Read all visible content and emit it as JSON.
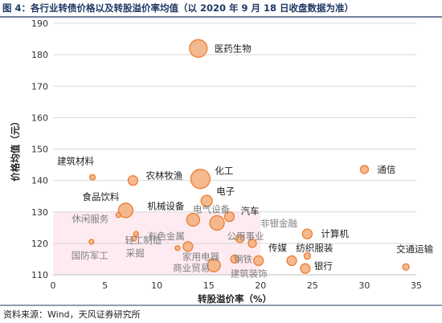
{
  "title": "图 4：各行业转债价格以及转股溢价率均值（以 2020 年 9 月 18 日收盘数据为准）",
  "source": "资料来源：Wind，天风证券研究所",
  "chart_data": {
    "type": "scatter",
    "title": "图 4：各行业转债价格以及转股溢价率均值（以 2020 年 9 月 18 日收盘数据为准）",
    "xlabel": "转股溢价率（%）",
    "ylabel": "价格均值（元）",
    "xlim": [
      0,
      35
    ],
    "ylim": [
      110,
      190
    ],
    "xticks": [
      "0",
      "5",
      "10",
      "15",
      "20",
      "25",
      "30",
      "35"
    ],
    "yticks": [
      "110",
      "120",
      "130",
      "140",
      "150",
      "160",
      "170",
      "180",
      "190"
    ],
    "grid": "horizontal",
    "colors": {
      "point_fill": "#f4b183",
      "point_stroke": "#ed7d31",
      "highlight_band": "#fce4ec",
      "title": "#1f3864"
    },
    "points": [
      {
        "name": "医药生物",
        "x": 14.0,
        "y": 182.0,
        "size": 11,
        "label_dx": 20,
        "label_dy": 4
      },
      {
        "name": "通信",
        "x": 30.0,
        "y": 143.5,
        "size": 5,
        "label_dx": 16,
        "label_dy": 4
      },
      {
        "name": "建筑材料",
        "x": 3.8,
        "y": 141.0,
        "size": 3.5,
        "label_dx": -44,
        "label_dy": -16
      },
      {
        "name": "农林牧渔",
        "x": 7.7,
        "y": 140.0,
        "size": 6,
        "label_dx": 16,
        "label_dy": -2
      },
      {
        "name": "化工",
        "x": 14.2,
        "y": 140.5,
        "size": 12,
        "label_dx": 18,
        "label_dy": -6
      },
      {
        "name": "食品饮料",
        "x": 7.0,
        "y": 130.5,
        "size": 9,
        "label_dx": -54,
        "label_dy": -13
      },
      {
        "name": "机械设备",
        "x": 13.5,
        "y": 127.5,
        "size": 8,
        "label_dx": -57,
        "label_dy": -13
      },
      {
        "name": "电子",
        "x": 14.8,
        "y": 133.5,
        "size": 7,
        "label_dx": 12,
        "label_dy": -8
      },
      {
        "name": "电气设备",
        "x": 15.8,
        "y": 126.5,
        "size": 9,
        "label_dx": -30,
        "label_dy": -13
      },
      {
        "name": "汽车",
        "x": 17.0,
        "y": 128.5,
        "size": 6,
        "label_dx": 14,
        "label_dy": -3
      },
      {
        "name": "休闲服务",
        "x": 6.3,
        "y": 129.0,
        "size": 3,
        "label_dx": -58,
        "label_dy": 9
      },
      {
        "name": "轻工制造",
        "x": 8.0,
        "y": 123.0,
        "size": 3,
        "label_dx": -14,
        "label_dy": 12
      },
      {
        "name": "有色金属",
        "x": 13.0,
        "y": 119.0,
        "size": 6,
        "label_dx": -50,
        "label_dy": -9
      },
      {
        "name": "国防军工",
        "x": 3.7,
        "y": 120.5,
        "size": 3,
        "label_dx": -25,
        "label_dy": 21
      },
      {
        "name": "采掘",
        "x": 7.8,
        "y": 121.5,
        "size": 3,
        "label_dx": -10,
        "label_dy": 22
      },
      {
        "name": "家用电器",
        "x": 12.0,
        "y": 118.5,
        "size": 3,
        "label_dx": 6,
        "label_dy": 15
      },
      {
        "name": "公用事业",
        "x": 18.0,
        "y": 121.5,
        "size": 5,
        "label_dx": -16,
        "label_dy": 1
      },
      {
        "name": "非银金融",
        "x": 19.2,
        "y": 120.0,
        "size": 5,
        "label_dx": 10,
        "label_dy": -21
      },
      {
        "name": "计算机",
        "x": 24.5,
        "y": 123.0,
        "size": 6,
        "label_dx": 17,
        "label_dy": 4
      },
      {
        "name": "钢铁",
        "x": 17.5,
        "y": 115.0,
        "size": 5,
        "label_dx": -1,
        "label_dy": 4
      },
      {
        "name": "商业贸易",
        "x": 15.5,
        "y": 113.0,
        "size": 8,
        "label_dx": -51,
        "label_dy": 7
      },
      {
        "name": "传媒",
        "x": 23.0,
        "y": 114.5,
        "size": 6,
        "label_dx": -29,
        "label_dy": -12
      },
      {
        "name": "纺织服装",
        "x": 24.5,
        "y": 116.0,
        "size": 4,
        "label_dx": -14,
        "label_dy": -6
      },
      {
        "name": "建筑装饰",
        "x": 19.8,
        "y": 114.5,
        "size": 6,
        "label_dx": -35,
        "label_dy": 20
      },
      {
        "name": "银行",
        "x": 24.3,
        "y": 112.0,
        "size": 6,
        "label_dx": 11,
        "label_dy": 1
      },
      {
        "name": "交通运输",
        "x": 34.0,
        "y": 112.5,
        "size": 4,
        "label_dx": -12,
        "label_dy": -18
      }
    ]
  }
}
